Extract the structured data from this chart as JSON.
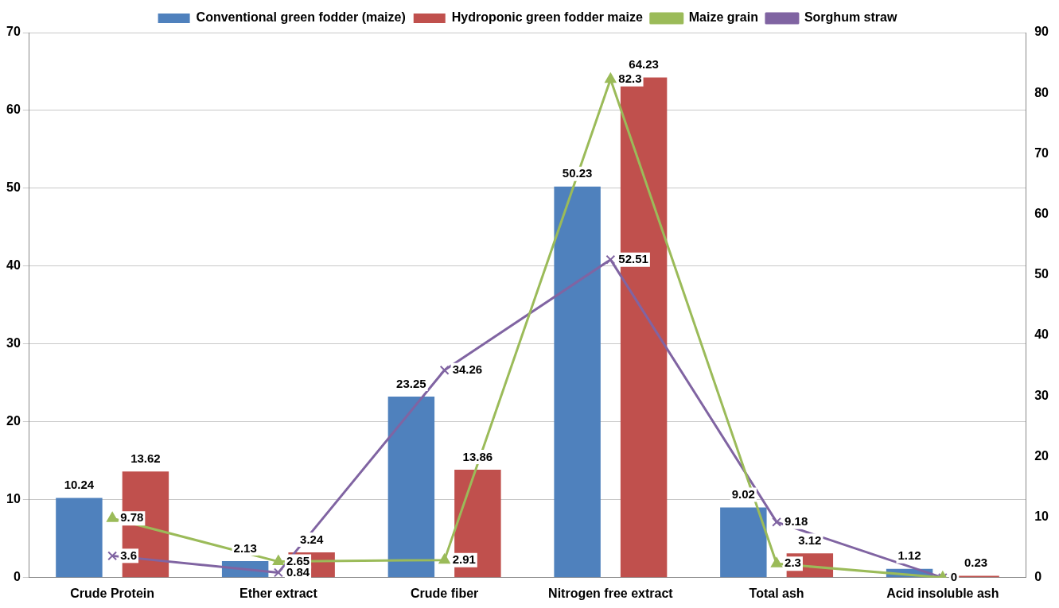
{
  "chart_data": {
    "type": "bar",
    "categories": [
      "Crude Protein",
      "Ether extract",
      "Crude fiber",
      "Nitrogen free extract",
      "Total ash",
      "Acid insoluble ash"
    ],
    "series": [
      {
        "name": "Conventional green fodder (maize)",
        "color": "#4f81bd",
        "values": [
          10.24,
          2.13,
          23.25,
          50.23,
          9.02,
          1.12
        ],
        "value_labels": [
          "10.24",
          "2.13",
          "23.25",
          "50.23",
          "9.02",
          "1.12"
        ]
      },
      {
        "name": "Hydroponic green fodder maize",
        "color": "#c0504d",
        "values": [
          13.62,
          3.24,
          13.86,
          64.23,
          3.12,
          0.23
        ],
        "value_labels": [
          "13.62",
          "3.24",
          "13.86",
          "64.23",
          "3.12",
          "0.23"
        ]
      },
      {
        "name": "Maize grain",
        "type": "line",
        "axis": "y2",
        "marker": "triangle",
        "color": "#9bbb59",
        "values": [
          9.78,
          2.65,
          2.91,
          82.3,
          2.3,
          0
        ],
        "value_labels": [
          "9.78",
          "2.65",
          "2.91",
          "82.3",
          "2.3",
          "0"
        ]
      },
      {
        "name": "Sorghum straw",
        "type": "line",
        "axis": "y2",
        "marker": "cross",
        "color": "#8064a2",
        "values": [
          3.6,
          0.84,
          34.26,
          52.51,
          9.18,
          0
        ],
        "value_labels": [
          "3.6",
          "0.84",
          "34.26",
          "52.51",
          "9.18",
          null
        ]
      }
    ],
    "ylim": [
      0,
      70
    ],
    "yticks": [
      0,
      10,
      20,
      30,
      40,
      50,
      60,
      70
    ],
    "y2lim": [
      0,
      90
    ],
    "y2ticks": [
      0,
      10,
      20,
      30,
      40,
      50,
      60,
      70,
      80,
      90
    ],
    "grid": "y",
    "legend": "top"
  }
}
